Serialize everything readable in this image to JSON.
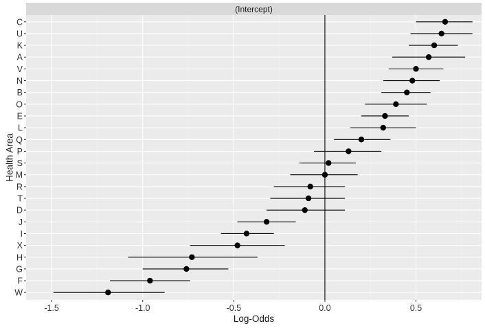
{
  "chart_data": {
    "type": "scatter",
    "subtype": "dot-and-whisker",
    "facet_label": "(Intercept)",
    "xlabel": "Log-Odds",
    "ylabel": "Health Area",
    "xlim": [
      -1.64,
      0.86
    ],
    "x_ticks": [
      -1.5,
      -1.0,
      -0.5,
      0.0,
      0.5
    ],
    "x_tick_labels": [
      "-1.5",
      "-1.0",
      "-0.5",
      "0.0",
      "0.5"
    ],
    "reference_line_x": 0,
    "grid": true,
    "colors": {
      "panel_background": "#ebebeb",
      "grid_major": "#ffffff",
      "grid_minor": "#f3f3f3",
      "strip_background": "#d9d9d9",
      "point": "#000000",
      "whisker": "#000000"
    },
    "categories": [
      "C",
      "U",
      "K",
      "A",
      "V",
      "N",
      "B",
      "O",
      "E",
      "L",
      "Q",
      "P",
      "S",
      "M",
      "R",
      "T",
      "D",
      "J",
      "I",
      "X",
      "H",
      "G",
      "F",
      "W"
    ],
    "estimate": [
      0.66,
      0.64,
      0.6,
      0.57,
      0.5,
      0.48,
      0.45,
      0.39,
      0.33,
      0.32,
      0.2,
      0.13,
      0.02,
      0.0,
      -0.08,
      -0.09,
      -0.11,
      -0.32,
      -0.43,
      -0.48,
      -0.73,
      -0.76,
      -0.96,
      -1.19
    ],
    "lower": [
      0.5,
      0.47,
      0.46,
      0.37,
      0.35,
      0.32,
      0.31,
      0.22,
      0.2,
      0.14,
      0.05,
      -0.06,
      -0.14,
      -0.19,
      -0.28,
      -0.3,
      -0.32,
      -0.48,
      -0.57,
      -0.74,
      -1.08,
      -1.0,
      -1.18,
      -1.49
    ],
    "upper": [
      0.81,
      0.81,
      0.73,
      0.77,
      0.65,
      0.63,
      0.58,
      0.56,
      0.46,
      0.5,
      0.36,
      0.31,
      0.17,
      0.18,
      0.11,
      0.11,
      0.11,
      -0.16,
      -0.28,
      -0.22,
      -0.37,
      -0.53,
      -0.74,
      -0.88
    ]
  }
}
